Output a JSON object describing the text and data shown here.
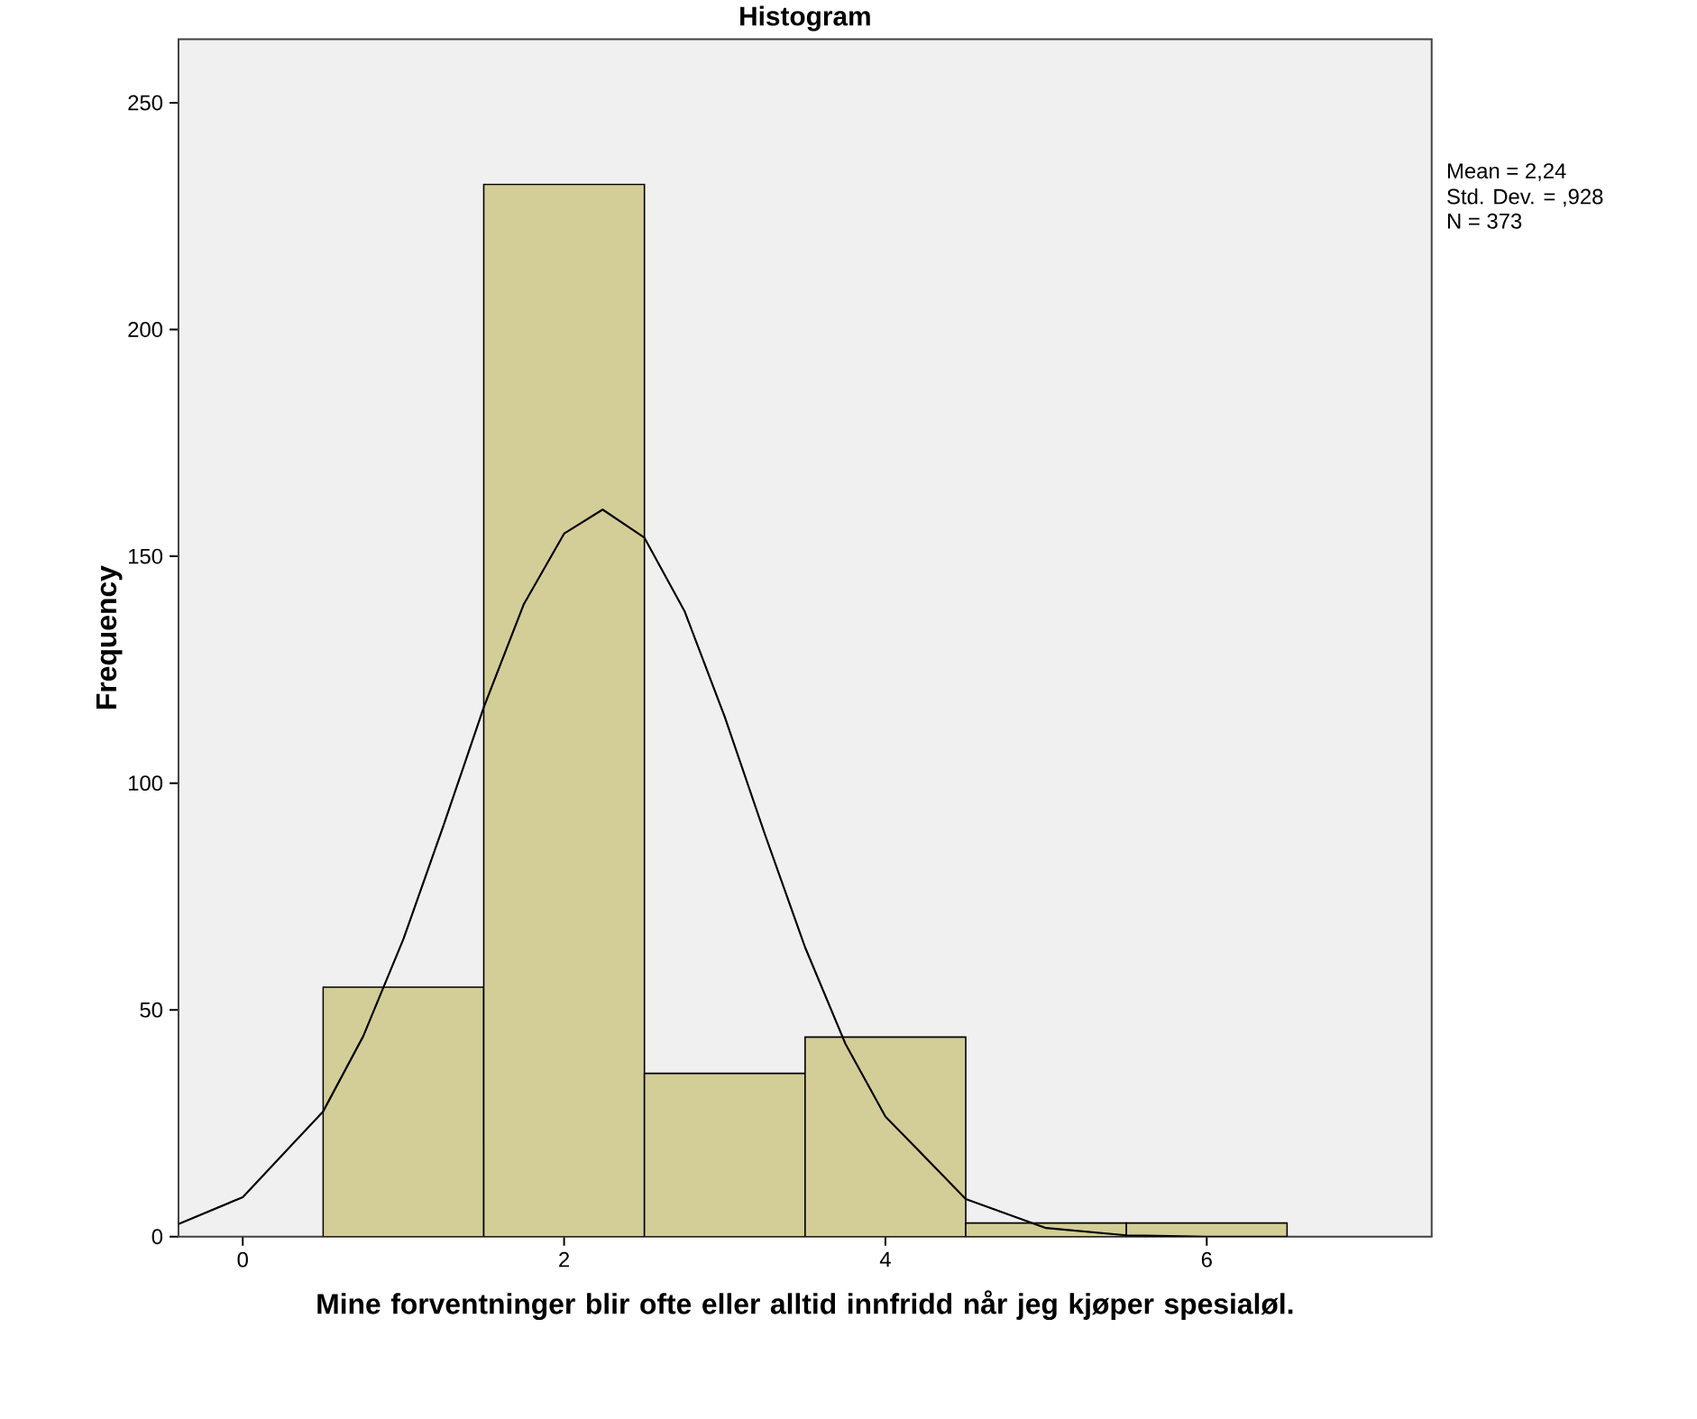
{
  "chart_data": {
    "type": "histogram",
    "title": "Histogram",
    "xlabel": "Mine forventninger blir ofte eller alltid innfridd når jeg kjøper spesialøl.",
    "ylabel": "Frequency",
    "bins": [
      0.5,
      1.5,
      2.5,
      3.5,
      4.5,
      5.5,
      6.5
    ],
    "values": [
      55,
      232,
      36,
      44,
      3,
      3
    ],
    "color": "#d3ce97",
    "xlim": [
      -0.4,
      7.4
    ],
    "ylim": [
      0,
      264
    ],
    "xticks": [
      0,
      2,
      4,
      6
    ],
    "yticks": [
      0,
      50,
      100,
      150,
      200,
      250
    ],
    "series": [
      {
        "type": "line",
        "color": "#000000",
        "x": [
          -0.4,
          0,
          0.5,
          0.75,
          1,
          1.25,
          1.5,
          1.75,
          2,
          2.24,
          2.5,
          2.75,
          3,
          3.25,
          3.5,
          3.75,
          4,
          4.5,
          5,
          5.5,
          6,
          6.5
        ],
        "values": [
          2.8,
          8.7,
          27.6,
          44.2,
          65.6,
          90.7,
          116.7,
          139.5,
          155,
          160.3,
          154.1,
          137.9,
          114.6,
          88.7,
          63.8,
          42.6,
          26.5,
          8.3,
          1.9,
          0.3,
          0,
          0
        ]
      }
    ],
    "annotations": [
      "Mean = 2,24",
      "Std. Dev. = ,928",
      "N = 373"
    ]
  }
}
